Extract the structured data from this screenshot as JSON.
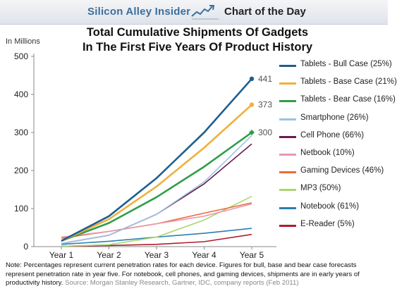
{
  "header": {
    "brand": "Silicon Alley Insider",
    "section": "Chart of the Day"
  },
  "note": {
    "text": "Note: Percentages represent current penetration rates for each device. Figures for bull, base and bear case forecasts represent penetration rate in year five. For notebook, cell phones, and gaming devices, shipments are in early years of productivity history.",
    "source": "Source: Morgan Stanley Research, Gartner, IDC, company reports (Feb 2011)"
  },
  "chart_data": {
    "type": "line",
    "title_line1": "Total Cumulative Shipments Of Gadgets",
    "title_line2": "In The First Five Years Of Product History",
    "ylabel": "In Millions",
    "categories": [
      "Year 1",
      "Year 2",
      "Year 3",
      "Year 4",
      "Year 5"
    ],
    "ylim": [
      0,
      500
    ],
    "yticks": [
      0,
      100,
      200,
      300,
      400,
      500
    ],
    "grid": false,
    "legend_position": "right",
    "series": [
      {
        "name": "Tablets - Bull Case (25%)",
        "color": "#1f5f8f",
        "values": [
          15,
          80,
          180,
          300,
          441
        ],
        "label": "441",
        "marker": "circle"
      },
      {
        "name": "Tablets - Base Case (21%)",
        "color": "#f0b13d",
        "values": [
          15,
          72,
          158,
          260,
          373
        ],
        "label": "373",
        "marker": "circle"
      },
      {
        "name": "Tablets - Bear Case (16%)",
        "color": "#2f9e49",
        "values": [
          15,
          62,
          130,
          210,
          300
        ],
        "label": "300",
        "marker": "diamond"
      },
      {
        "name": "Smartphone (26%)",
        "color": "#9cc3e4",
        "values": [
          8,
          30,
          85,
          170,
          292
        ]
      },
      {
        "name": "Cell Phone (66%)",
        "color": "#6a1b4d",
        "values": [
          8,
          30,
          85,
          165,
          270
        ]
      },
      {
        "name": "Netbook (10%)",
        "color": "#e79ab0",
        "values": [
          25,
          40,
          60,
          80,
          112
        ]
      },
      {
        "name": "Gaming Devices (46%)",
        "color": "#ea6a3c",
        "values": [
          22,
          40,
          60,
          88,
          115
        ]
      },
      {
        "name": "MP3 (50%)",
        "color": "#a8d86b",
        "values": [
          1,
          5,
          25,
          70,
          132
        ]
      },
      {
        "name": "Notebook (61%)",
        "color": "#2b7fb0",
        "values": [
          6,
          14,
          25,
          35,
          48
        ]
      },
      {
        "name": "E-Reader (5%)",
        "color": "#b01d2e",
        "values": [
          1,
          3,
          6,
          13,
          32
        ]
      }
    ]
  }
}
